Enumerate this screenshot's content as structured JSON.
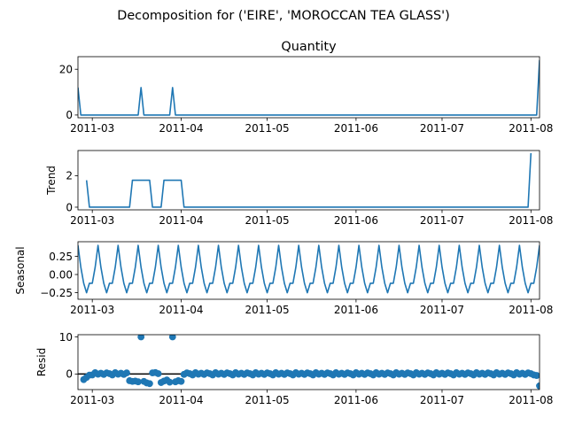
{
  "figure": {
    "title": "Decomposition for ('EIRE', 'MOROCCAN TEA GLASS')"
  },
  "chart_data": [
    {
      "panel": "observed",
      "type": "line",
      "title": "Quantity",
      "ylabel": "",
      "x_start": "2011-02-24",
      "x_end": "2011-08-04",
      "x_ticks": [
        "2011-03",
        "2011-04",
        "2011-05",
        "2011-06",
        "2011-07",
        "2011-08"
      ],
      "xlim": [
        "2011-02-24",
        "2011-08-04"
      ],
      "ylim": [
        -1.2,
        25.5
      ],
      "y_ticks": [
        0,
        20
      ],
      "color": "#1f77b4",
      "points": [
        [
          "2011-02-24",
          12
        ],
        [
          "2011-02-25",
          0
        ],
        [
          "2011-03-17",
          0
        ],
        [
          "2011-03-18",
          12
        ],
        [
          "2011-03-19",
          0
        ],
        [
          "2011-03-28",
          0
        ],
        [
          "2011-03-29",
          12
        ],
        [
          "2011-03-30",
          0
        ],
        [
          "2011-08-03",
          0
        ],
        [
          "2011-08-04",
          24
        ]
      ]
    },
    {
      "panel": "trend",
      "type": "line",
      "title": "",
      "ylabel": "Trend",
      "xlim": [
        "2011-02-24",
        "2011-08-04"
      ],
      "x_ticks": [
        "2011-03",
        "2011-04",
        "2011-05",
        "2011-06",
        "2011-07",
        "2011-08"
      ],
      "ylim": [
        -0.17,
        3.6
      ],
      "y_ticks": [
        0,
        2
      ],
      "color": "#1f77b4",
      "points": [
        [
          "2011-02-27",
          1.71
        ],
        [
          "2011-02-28",
          0
        ],
        [
          "2011-03-14",
          0
        ],
        [
          "2011-03-15",
          1.71
        ],
        [
          "2011-03-21",
          1.71
        ],
        [
          "2011-03-22",
          0
        ],
        [
          "2011-03-25",
          0
        ],
        [
          "2011-03-26",
          1.71
        ],
        [
          "2011-04-01",
          1.71
        ],
        [
          "2011-04-02",
          0
        ],
        [
          "2011-07-31",
          0
        ],
        [
          "2011-08-01",
          3.43
        ]
      ]
    },
    {
      "panel": "seasonal",
      "type": "line",
      "title": "",
      "ylabel": "Seasonal",
      "xlim": [
        "2011-02-24",
        "2011-08-04"
      ],
      "x_ticks": [
        "2011-03",
        "2011-04",
        "2011-05",
        "2011-06",
        "2011-07",
        "2011-08"
      ],
      "ylim": [
        -0.34,
        0.45
      ],
      "y_ticks": [
        0.25,
        0.0,
        -0.25
      ],
      "y_tick_labels": [
        "0.25",
        "0.00",
        "−0.25"
      ],
      "color": "#1f77b4",
      "period": 7,
      "cycle_values": [
        0.4,
        0.1,
        -0.12,
        -0.25,
        -0.12,
        -0.12,
        0.1
      ],
      "cycle_start": "2011-02-24"
    },
    {
      "panel": "resid",
      "type": "scatter",
      "title": "",
      "ylabel": "Resid",
      "xlim": [
        "2011-02-24",
        "2011-08-04"
      ],
      "x_ticks": [
        "2011-03",
        "2011-04",
        "2011-05",
        "2011-06",
        "2011-07",
        "2011-08"
      ],
      "ylim": [
        -4.2,
        10.6
      ],
      "y_ticks": [
        0,
        10
      ],
      "color": "#1f77b4",
      "baseline": 0,
      "base_pattern": [
        -0.05,
        0.2,
        -0.1,
        0.3,
        0.1,
        -0.25,
        0.35
      ],
      "overrides": [
        [
          "2011-02-26",
          -1.5
        ],
        [
          "2011-02-27",
          -0.9
        ],
        [
          "2011-02-28",
          -0.3
        ],
        [
          "2011-03-14",
          -1.8
        ],
        [
          "2011-03-15",
          -2.0
        ],
        [
          "2011-03-16",
          -1.9
        ],
        [
          "2011-03-17",
          -2.1
        ],
        [
          "2011-03-18",
          10.0
        ],
        [
          "2011-03-19",
          -2.0
        ],
        [
          "2011-03-20",
          -2.4
        ],
        [
          "2011-03-21",
          -2.6
        ],
        [
          "2011-03-22",
          0.3
        ],
        [
          "2011-03-23",
          0.4
        ],
        [
          "2011-03-24",
          0.1
        ],
        [
          "2011-03-25",
          -2.3
        ],
        [
          "2011-03-26",
          -1.9
        ],
        [
          "2011-03-27",
          -1.6
        ],
        [
          "2011-03-28",
          -2.2
        ],
        [
          "2011-03-29",
          10.0
        ],
        [
          "2011-03-30",
          -2.1
        ],
        [
          "2011-03-31",
          -1.8
        ],
        [
          "2011-04-01",
          -2.0
        ],
        [
          "2011-08-03",
          -0.4
        ],
        [
          "2011-08-04",
          -3.2
        ]
      ]
    }
  ]
}
